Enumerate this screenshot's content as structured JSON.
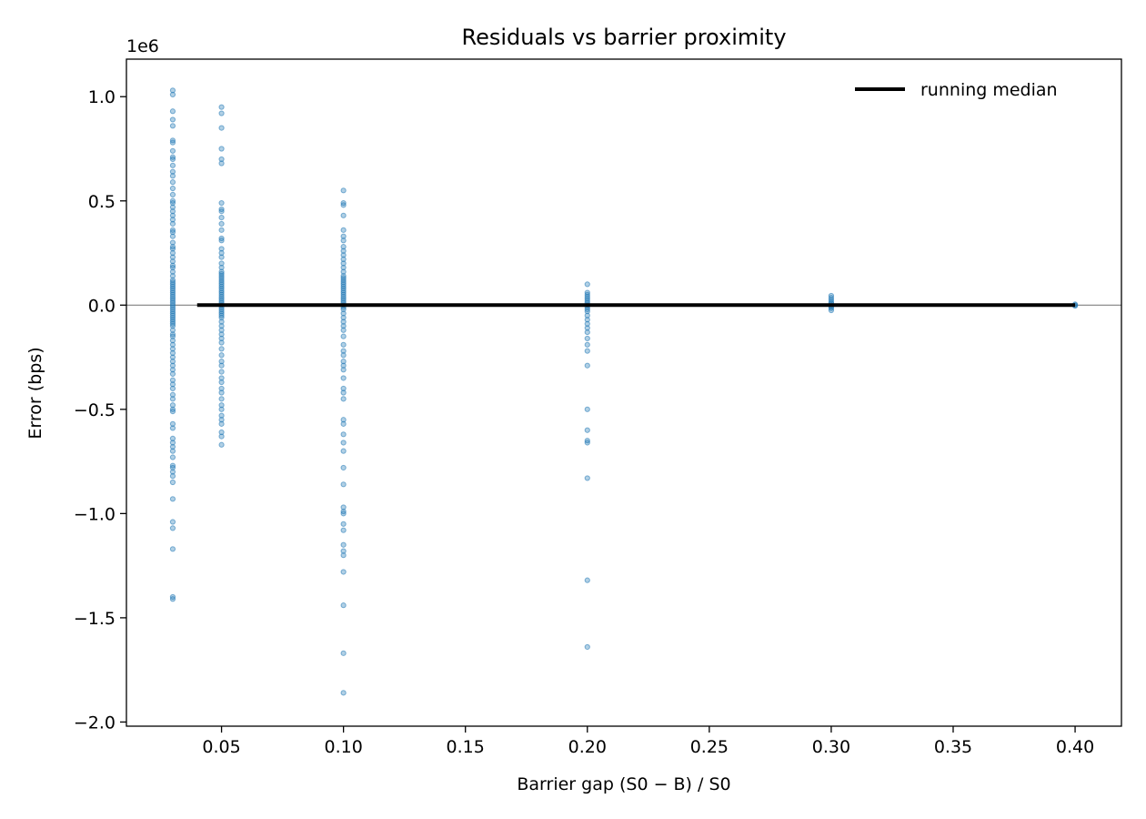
{
  "chart_data": {
    "type": "scatter",
    "title": "Residuals vs barrier proximity",
    "xlabel": "Barrier gap  (S0 − B) / S0",
    "ylabel": "Error (bps)",
    "y_offset_label": "1e6",
    "y_scale": 1000000,
    "xlim": [
      0.011,
      0.419
    ],
    "ylim": [
      -2.02,
      1.18
    ],
    "x_ticks": [
      0.05,
      0.1,
      0.15,
      0.2,
      0.25,
      0.3,
      0.35,
      0.4
    ],
    "x_tick_labels": [
      "0.05",
      "0.10",
      "0.15",
      "0.20",
      "0.25",
      "0.30",
      "0.35",
      "0.40"
    ],
    "y_ticks": [
      -2.0,
      -1.5,
      -1.0,
      -0.5,
      0.0,
      0.5,
      1.0
    ],
    "y_tick_labels": [
      "−2.0",
      "−1.5",
      "−1.0",
      "−0.5",
      "0.0",
      "0.5",
      "1.0"
    ],
    "zero_line": true,
    "grid": false,
    "legend": {
      "position": "top-right",
      "entries": [
        "running median"
      ]
    },
    "colors": {
      "points": "#1f77b4",
      "median": "#000000",
      "zero_line": "#808080"
    },
    "series": [
      {
        "type": "scatter",
        "points": [
          {
            "x": 0.03,
            "y": [
              1.03,
              1.01,
              0.93,
              0.89,
              0.86,
              0.79,
              0.78,
              0.74,
              0.71,
              0.7,
              0.67,
              0.64,
              0.62,
              0.59,
              0.56,
              0.53,
              0.5,
              0.49,
              0.47,
              0.45,
              0.43,
              0.41,
              0.39,
              0.36,
              0.35,
              0.33,
              0.3,
              0.28,
              0.27,
              0.25,
              0.23,
              0.21,
              0.19,
              0.18,
              0.16,
              0.14,
              0.12,
              0.11,
              0.1,
              0.09,
              0.08,
              0.07,
              0.06,
              0.05,
              0.04,
              0.03,
              0.02,
              0.01,
              0.0,
              -0.01,
              -0.02,
              -0.03,
              -0.04,
              -0.05,
              -0.06,
              -0.07,
              -0.08,
              -0.09,
              -0.1,
              -0.12,
              -0.14,
              -0.15,
              -0.17,
              -0.19,
              -0.21,
              -0.23,
              -0.25,
              -0.27,
              -0.29,
              -0.31,
              -0.33,
              -0.36,
              -0.38,
              -0.4,
              -0.43,
              -0.45,
              -0.48,
              -0.5,
              -0.51,
              -0.57,
              -0.59,
              -0.64,
              -0.66,
              -0.68,
              -0.7,
              -0.73,
              -0.77,
              -0.78,
              -0.8,
              -0.82,
              -0.85,
              -0.93,
              -1.04,
              -1.07,
              -1.17,
              -1.4,
              -1.41
            ]
          },
          {
            "x": 0.05,
            "y": [
              0.95,
              0.92,
              0.85,
              0.75,
              0.7,
              0.68,
              0.49,
              0.46,
              0.45,
              0.42,
              0.39,
              0.36,
              0.32,
              0.31,
              0.27,
              0.25,
              0.23,
              0.2,
              0.18,
              0.16,
              0.15,
              0.14,
              0.13,
              0.12,
              0.11,
              0.1,
              0.09,
              0.08,
              0.07,
              0.06,
              0.05,
              0.04,
              0.03,
              0.02,
              0.01,
              0.0,
              -0.01,
              -0.02,
              -0.03,
              -0.04,
              -0.05,
              -0.06,
              -0.08,
              -0.1,
              -0.12,
              -0.14,
              -0.16,
              -0.18,
              -0.21,
              -0.24,
              -0.27,
              -0.29,
              -0.32,
              -0.35,
              -0.37,
              -0.4,
              -0.42,
              -0.45,
              -0.48,
              -0.5,
              -0.53,
              -0.55,
              -0.57,
              -0.61,
              -0.63,
              -0.67
            ]
          },
          {
            "x": 0.1,
            "y": [
              0.55,
              0.49,
              0.48,
              0.43,
              0.36,
              0.33,
              0.31,
              0.28,
              0.26,
              0.24,
              0.22,
              0.2,
              0.18,
              0.16,
              0.14,
              0.13,
              0.12,
              0.11,
              0.1,
              0.09,
              0.08,
              0.07,
              0.06,
              0.05,
              0.04,
              0.03,
              0.02,
              0.01,
              0.0,
              -0.01,
              -0.02,
              -0.04,
              -0.06,
              -0.08,
              -0.1,
              -0.12,
              -0.15,
              -0.19,
              -0.22,
              -0.24,
              -0.27,
              -0.29,
              -0.31,
              -0.35,
              -0.4,
              -0.42,
              -0.45,
              -0.55,
              -0.57,
              -0.62,
              -0.66,
              -0.7,
              -0.78,
              -0.86,
              -0.97,
              -0.99,
              -1.0,
              -1.05,
              -1.08,
              -1.15,
              -1.18,
              -1.2,
              -1.28,
              -1.44,
              -1.67,
              -1.86
            ]
          },
          {
            "x": 0.2,
            "y": [
              0.1,
              0.06,
              0.05,
              0.04,
              0.03,
              0.02,
              0.01,
              0.0,
              -0.01,
              -0.02,
              -0.03,
              -0.05,
              -0.07,
              -0.09,
              -0.11,
              -0.13,
              -0.16,
              -0.19,
              -0.22,
              -0.29,
              -0.5,
              -0.6,
              -0.65,
              -0.66,
              -0.83,
              -1.32,
              -1.64
            ]
          },
          {
            "x": 0.3,
            "y": [
              0.045,
              0.035,
              0.025,
              0.015,
              0.008,
              0.0,
              -0.008,
              -0.015,
              -0.025
            ]
          },
          {
            "x": 0.4,
            "y": [
              0.004,
              0.0,
              -0.004
            ]
          }
        ]
      },
      {
        "type": "line",
        "name": "running median",
        "x": [
          0.04,
          0.4
        ],
        "y": [
          0.0,
          0.0
        ]
      }
    ]
  }
}
